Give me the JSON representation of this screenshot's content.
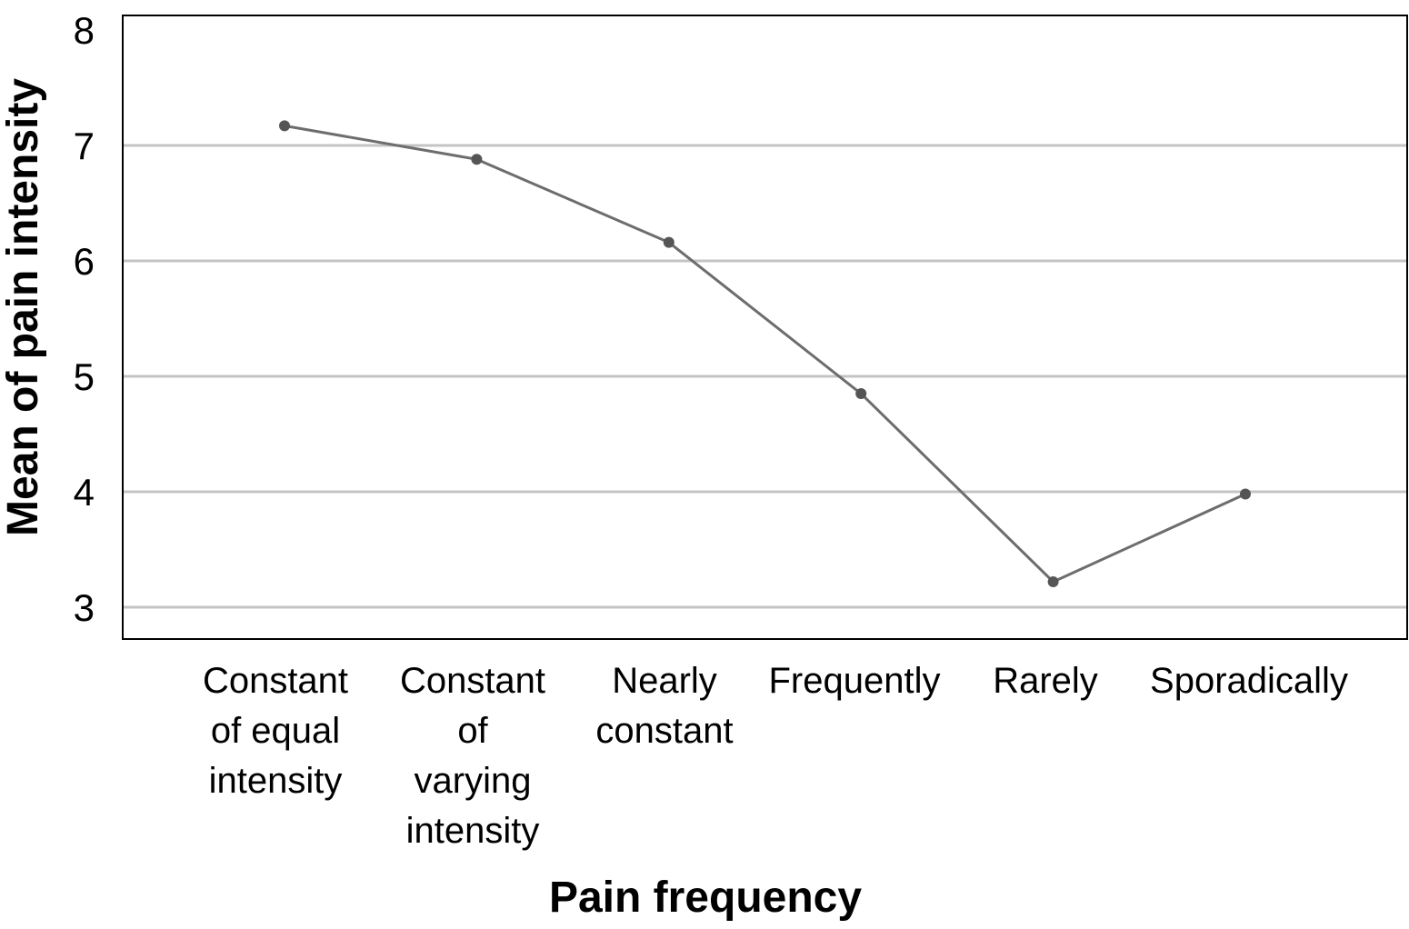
{
  "chart_data": {
    "type": "line",
    "xlabel": "Pain frequency",
    "ylabel": "Mean of pain intensity",
    "ylim": [
      3,
      8
    ],
    "yticks": [
      "3",
      "4",
      "5",
      "6",
      "7",
      "8"
    ],
    "grid": true,
    "categories": [
      [
        "Constant",
        "of equal",
        "intensity"
      ],
      [
        "Constant",
        "of",
        "varying",
        "intensity"
      ],
      [
        "Nearly",
        "constant"
      ],
      [
        "Frequently"
      ],
      [
        "Rarely"
      ],
      [
        "Sporadically"
      ]
    ],
    "series": [
      {
        "values": [
          7.17,
          6.88,
          6.16,
          4.85,
          3.22,
          3.98
        ]
      }
    ],
    "colors": {
      "line": "#6d6d6d",
      "grid": "#c4c4c4",
      "frame": "#000000"
    }
  }
}
